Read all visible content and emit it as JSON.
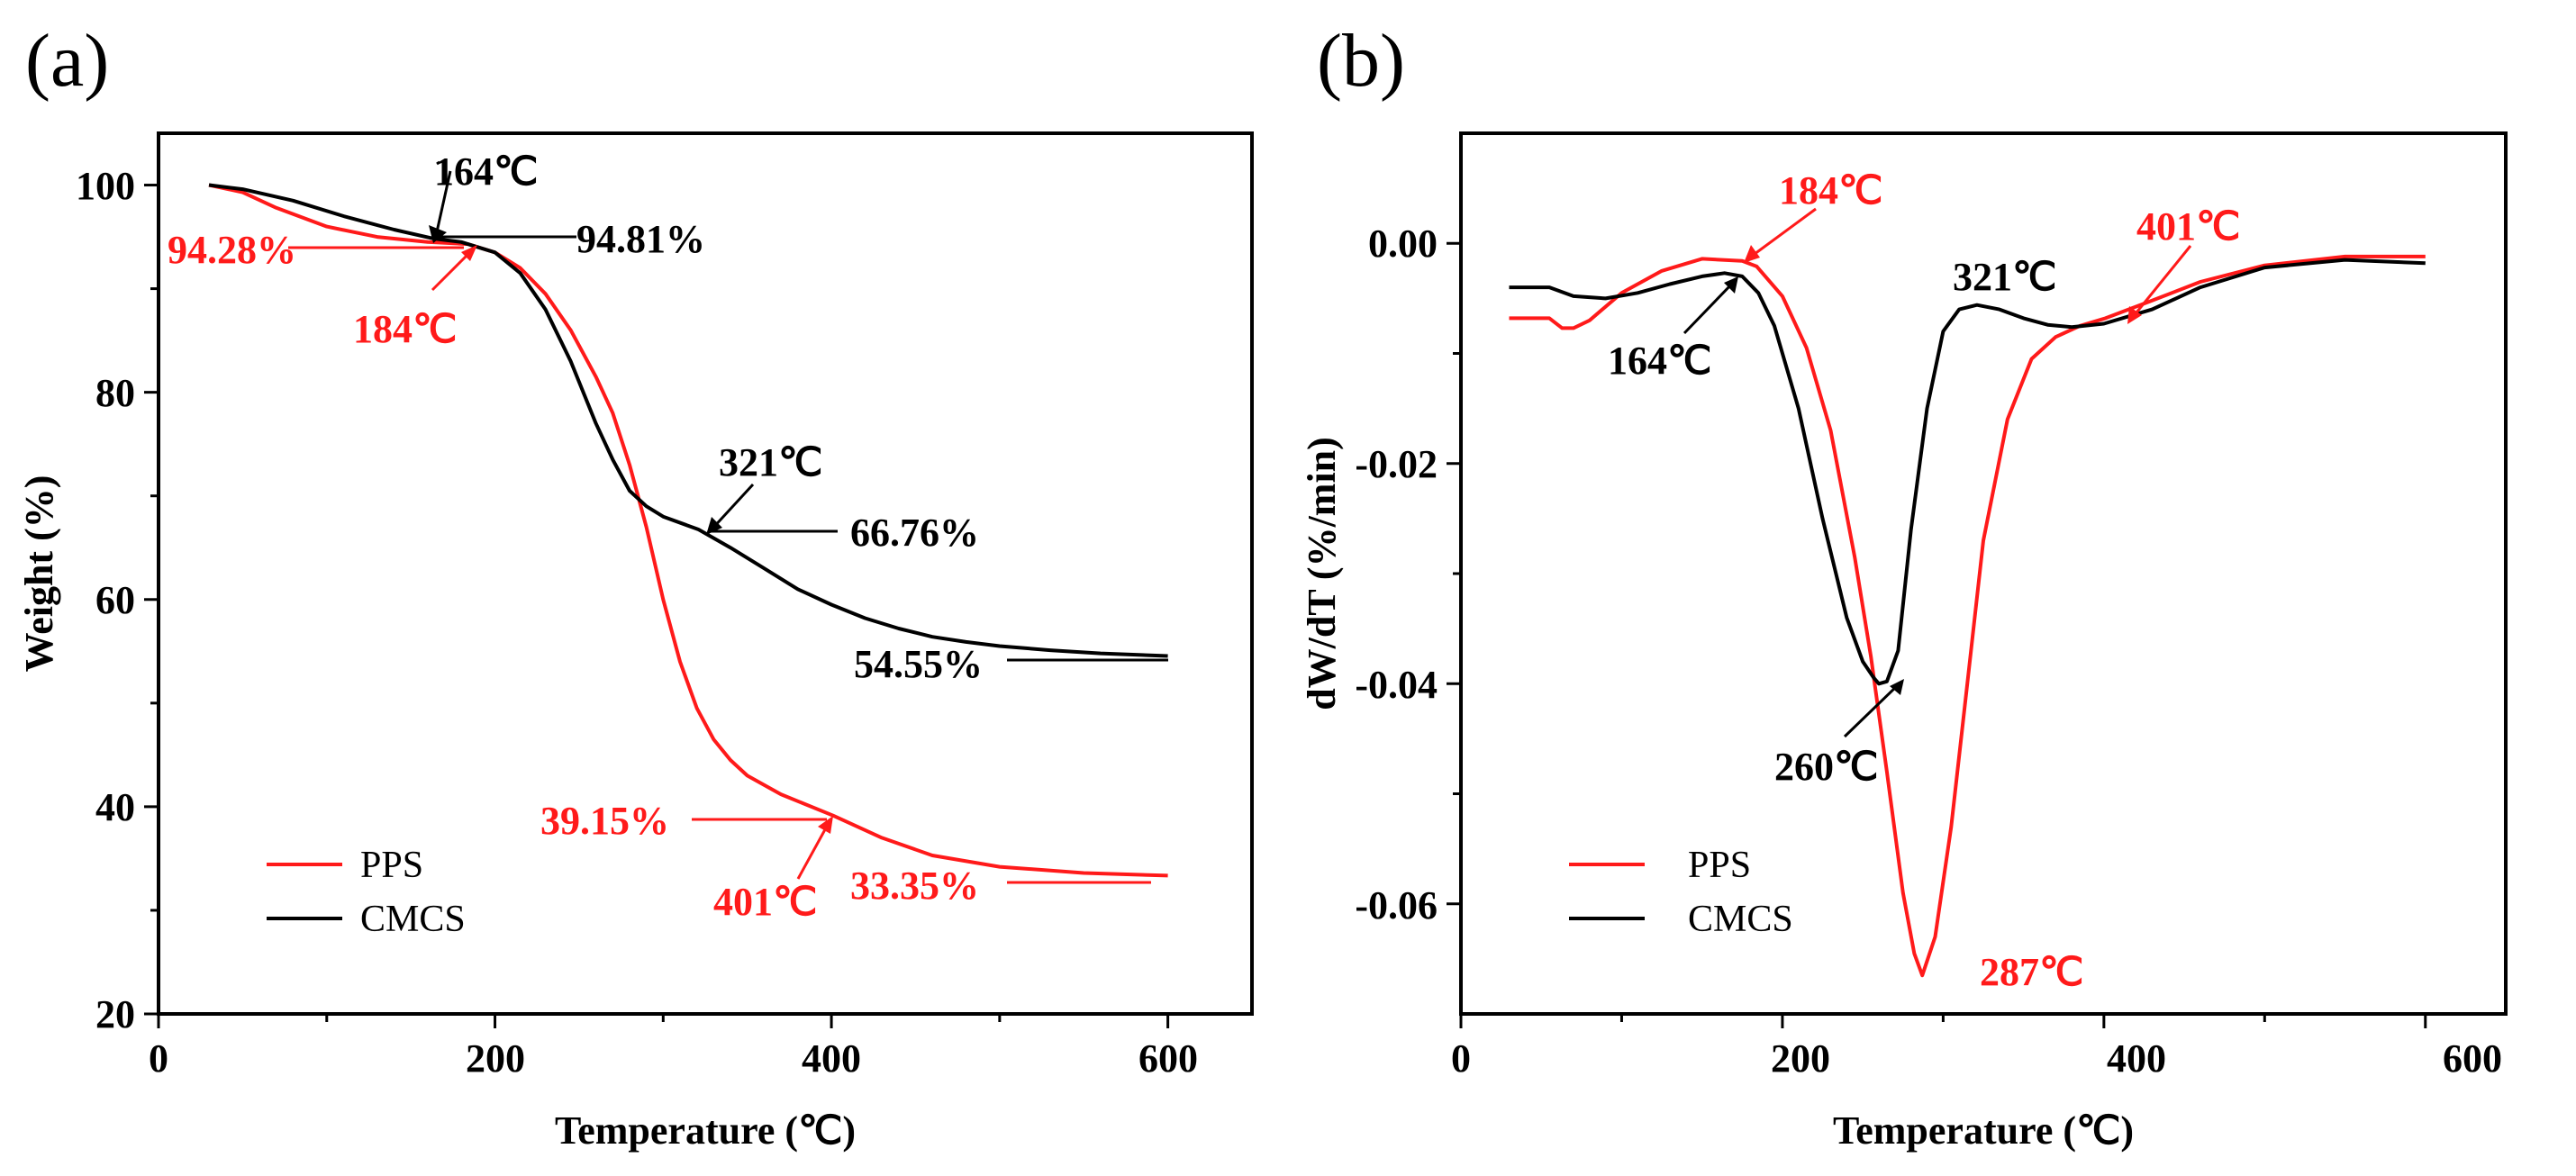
{
  "colors": {
    "pps": "#ff1a1a",
    "cmcs": "#000000"
  },
  "chart_data": [
    {
      "panel": "(a)",
      "type": "line",
      "xlabel": "Temperature (℃)",
      "ylabel": "Weight (%)",
      "xlim": [
        0,
        650
      ],
      "ylim": [
        20,
        105
      ],
      "xticks": [
        "0",
        "200",
        "400",
        "600"
      ],
      "yticks": [
        "20",
        "40",
        "60",
        "80",
        "100"
      ],
      "legend_position": "bottom-left",
      "series": [
        {
          "name": "PPS",
          "color": "red",
          "x": [
            30,
            50,
            70,
            100,
            130,
            160,
            184,
            200,
            215,
            230,
            245,
            260,
            270,
            280,
            290,
            300,
            310,
            320,
            330,
            340,
            350,
            370,
            401,
            430,
            460,
            500,
            550,
            600
          ],
          "y": [
            100,
            99.3,
            97.8,
            96.0,
            95.0,
            94.5,
            94.3,
            93.5,
            92.0,
            89.5,
            86.0,
            81.5,
            78.0,
            73.0,
            67.0,
            60.0,
            54.0,
            49.5,
            46.5,
            44.5,
            43.0,
            41.2,
            39.15,
            37.0,
            35.3,
            34.2,
            33.6,
            33.35
          ]
        },
        {
          "name": "CMCS",
          "color": "black",
          "x": [
            30,
            50,
            80,
            110,
            140,
            164,
            180,
            200,
            215,
            230,
            245,
            260,
            270,
            280,
            290,
            300,
            321,
            340,
            360,
            380,
            400,
            420,
            440,
            460,
            480,
            500,
            530,
            560,
            600
          ],
          "y": [
            100,
            99.6,
            98.5,
            97.0,
            95.7,
            94.81,
            94.5,
            93.5,
            91.5,
            88.0,
            83.0,
            77.0,
            73.5,
            70.5,
            69.0,
            68.0,
            66.76,
            65.0,
            63.0,
            61.0,
            59.5,
            58.2,
            57.2,
            56.4,
            55.9,
            55.5,
            55.1,
            54.8,
            54.55
          ]
        }
      ],
      "annotations": [
        {
          "text": "164℃",
          "color": "black"
        },
        {
          "text": "94.81%",
          "color": "black"
        },
        {
          "text": "94.28%",
          "color": "red"
        },
        {
          "text": "184℃",
          "color": "red"
        },
        {
          "text": "321℃",
          "color": "black"
        },
        {
          "text": "66.76%",
          "color": "black"
        },
        {
          "text": "54.55%",
          "color": "black"
        },
        {
          "text": "39.15%",
          "color": "red"
        },
        {
          "text": "401℃",
          "color": "red"
        },
        {
          "text": "33.35%",
          "color": "red"
        }
      ]
    },
    {
      "panel": "(b)",
      "type": "line",
      "xlabel": "Temperature (℃)",
      "ylabel": "dW/dT (%/min)",
      "xlim": [
        0,
        650
      ],
      "ylim": [
        -0.07,
        0.01
      ],
      "xticks": [
        "0",
        "200",
        "400",
        "600"
      ],
      "yticks": [
        "0.00",
        "-0.02",
        "-0.04",
        "-0.06"
      ],
      "legend_position": "bottom-left",
      "series": [
        {
          "name": "PPS",
          "color": "red",
          "x": [
            30,
            55,
            63,
            70,
            80,
            100,
            125,
            150,
            175,
            184,
            200,
            215,
            230,
            245,
            255,
            265,
            275,
            282,
            287,
            295,
            305,
            315,
            325,
            340,
            355,
            370,
            385,
            401,
            430,
            460,
            500,
            550,
            600
          ],
          "y": [
            -0.0068,
            -0.0068,
            -0.0077,
            -0.0077,
            -0.007,
            -0.0045,
            -0.0025,
            -0.0014,
            -0.0016,
            -0.0021,
            -0.0048,
            -0.0095,
            -0.017,
            -0.0285,
            -0.0375,
            -0.048,
            -0.059,
            -0.0645,
            -0.0665,
            -0.063,
            -0.053,
            -0.04,
            -0.027,
            -0.016,
            -0.0105,
            -0.0085,
            -0.0075,
            -0.0068,
            -0.0052,
            -0.0035,
            -0.002,
            -0.0012,
            -0.0012
          ]
        },
        {
          "name": "CMCS",
          "color": "black",
          "x": [
            30,
            55,
            70,
            90,
            110,
            130,
            150,
            164,
            175,
            185,
            195,
            210,
            225,
            240,
            250,
            257,
            260,
            265,
            272,
            280,
            290,
            300,
            310,
            321,
            335,
            350,
            365,
            380,
            400,
            430,
            460,
            500,
            550,
            600
          ],
          "y": [
            -0.004,
            -0.004,
            -0.0048,
            -0.005,
            -0.0045,
            -0.0037,
            -0.003,
            -0.0027,
            -0.003,
            -0.0045,
            -0.0075,
            -0.015,
            -0.025,
            -0.034,
            -0.038,
            -0.0395,
            -0.04,
            -0.0398,
            -0.037,
            -0.026,
            -0.015,
            -0.008,
            -0.006,
            -0.0056,
            -0.006,
            -0.0068,
            -0.0074,
            -0.0076,
            -0.0073,
            -0.006,
            -0.004,
            -0.0022,
            -0.0015,
            -0.0018
          ]
        }
      ],
      "annotations": [
        {
          "text": "184℃",
          "color": "red"
        },
        {
          "text": "164℃",
          "color": "black"
        },
        {
          "text": "321℃",
          "color": "black"
        },
        {
          "text": "401℃",
          "color": "red"
        },
        {
          "text": "260℃",
          "color": "black"
        },
        {
          "text": "287℃",
          "color": "red"
        }
      ]
    }
  ]
}
